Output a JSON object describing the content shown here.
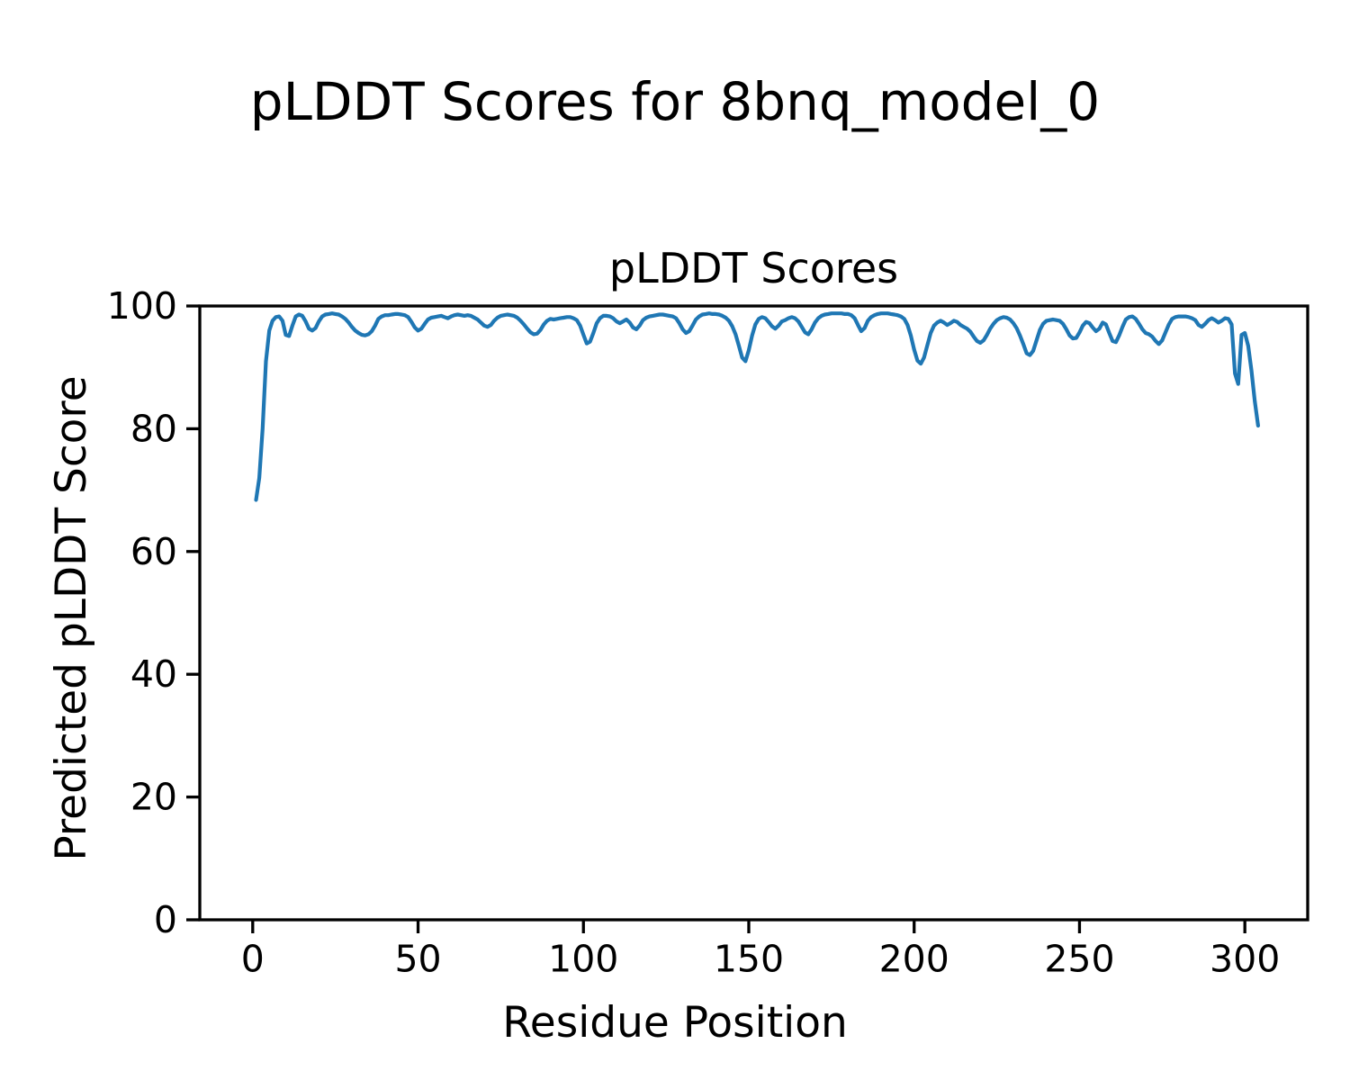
{
  "figure": {
    "suptitle": "pLDDT Scores for 8bnq_model_0",
    "background_color": "#ffffff",
    "text_color": "#000000"
  },
  "chart_data": {
    "type": "line",
    "title": "pLDDT Scores",
    "xlabel": "Residue Position",
    "ylabel": "Predicted pLDDT Score",
    "xlim": [
      -16,
      319
    ],
    "ylim": [
      0,
      100
    ],
    "xticks": [
      0,
      50,
      100,
      150,
      200,
      250,
      300
    ],
    "yticks": [
      0,
      20,
      40,
      60,
      80,
      100
    ],
    "grid": false,
    "legend_position": "none",
    "line_color": "#1f77b4",
    "frame_color": "#000000",
    "series": [
      {
        "name": "pLDDT",
        "x_start": 1,
        "x_step": 1,
        "y": [
          68.4,
          72.0,
          80.0,
          91.0,
          96.0,
          97.6,
          98.2,
          98.3,
          97.6,
          95.3,
          95.1,
          96.8,
          98.3,
          98.6,
          98.4,
          97.5,
          96.3,
          96.0,
          96.4,
          97.5,
          98.3,
          98.6,
          98.7,
          98.8,
          98.7,
          98.6,
          98.3,
          97.9,
          97.3,
          96.6,
          96.0,
          95.6,
          95.3,
          95.2,
          95.4,
          95.9,
          96.8,
          97.9,
          98.3,
          98.5,
          98.5,
          98.6,
          98.7,
          98.7,
          98.6,
          98.5,
          98.2,
          97.4,
          96.5,
          96.0,
          96.3,
          97.1,
          97.8,
          98.1,
          98.2,
          98.3,
          98.4,
          98.2,
          98.0,
          98.3,
          98.5,
          98.6,
          98.5,
          98.4,
          98.5,
          98.4,
          98.1,
          97.8,
          97.3,
          96.8,
          96.6,
          96.9,
          97.6,
          98.1,
          98.4,
          98.5,
          98.6,
          98.5,
          98.4,
          98.1,
          97.6,
          97.0,
          96.3,
          95.7,
          95.4,
          95.5,
          96.1,
          97.0,
          97.6,
          97.9,
          97.8,
          97.9,
          98.0,
          98.1,
          98.2,
          98.2,
          98.0,
          97.7,
          96.8,
          95.3,
          93.9,
          94.2,
          95.6,
          97.2,
          98.0,
          98.4,
          98.4,
          98.3,
          98.0,
          97.5,
          97.2,
          97.5,
          97.8,
          97.3,
          96.5,
          96.2,
          96.8,
          97.7,
          98.1,
          98.3,
          98.4,
          98.5,
          98.6,
          98.6,
          98.5,
          98.4,
          98.3,
          98.0,
          97.2,
          96.2,
          95.6,
          95.9,
          96.8,
          97.8,
          98.3,
          98.6,
          98.7,
          98.8,
          98.7,
          98.7,
          98.6,
          98.4,
          98.1,
          97.6,
          96.7,
          95.4,
          93.5,
          91.6,
          91.0,
          92.8,
          95.2,
          97.0,
          97.9,
          98.2,
          98.0,
          97.4,
          96.7,
          96.3,
          96.8,
          97.5,
          97.7,
          98.0,
          98.2,
          98.0,
          97.5,
          96.6,
          95.7,
          95.4,
          96.2,
          97.3,
          98.0,
          98.4,
          98.6,
          98.7,
          98.8,
          98.8,
          98.8,
          98.8,
          98.7,
          98.7,
          98.5,
          98.0,
          96.9,
          95.9,
          96.4,
          97.6,
          98.2,
          98.5,
          98.7,
          98.8,
          98.8,
          98.8,
          98.7,
          98.6,
          98.5,
          98.3,
          97.9,
          96.9,
          95.2,
          92.9,
          91.1,
          90.6,
          91.6,
          93.6,
          95.6,
          96.8,
          97.3,
          97.6,
          97.3,
          96.9,
          97.2,
          97.6,
          97.4,
          96.9,
          96.6,
          96.3,
          95.8,
          95.0,
          94.3,
          94.0,
          94.4,
          95.3,
          96.3,
          97.1,
          97.7,
          98.0,
          98.2,
          98.1,
          97.8,
          97.2,
          96.4,
          95.2,
          93.8,
          92.3,
          92.0,
          92.7,
          94.4,
          96.1,
          97.1,
          97.6,
          97.7,
          97.8,
          97.7,
          97.6,
          97.1,
          96.2,
          95.2,
          94.7,
          94.8,
          95.7,
          96.8,
          97.4,
          97.2,
          96.5,
          95.9,
          96.3,
          97.3,
          97.0,
          95.6,
          94.3,
          94.1,
          95.2,
          96.6,
          97.8,
          98.2,
          98.3,
          97.9,
          97.1,
          96.2,
          95.6,
          95.4,
          95.0,
          94.3,
          93.8,
          94.4,
          95.7,
          97.0,
          97.9,
          98.2,
          98.3,
          98.3,
          98.3,
          98.2,
          98.0,
          97.7,
          96.9,
          96.6,
          97.1,
          97.7,
          98.0,
          97.7,
          97.3,
          97.6,
          98.0,
          97.9,
          97.0,
          89.0,
          87.3,
          95.3,
          95.6,
          93.5,
          89.5,
          84.5,
          80.5
        ]
      }
    ]
  }
}
